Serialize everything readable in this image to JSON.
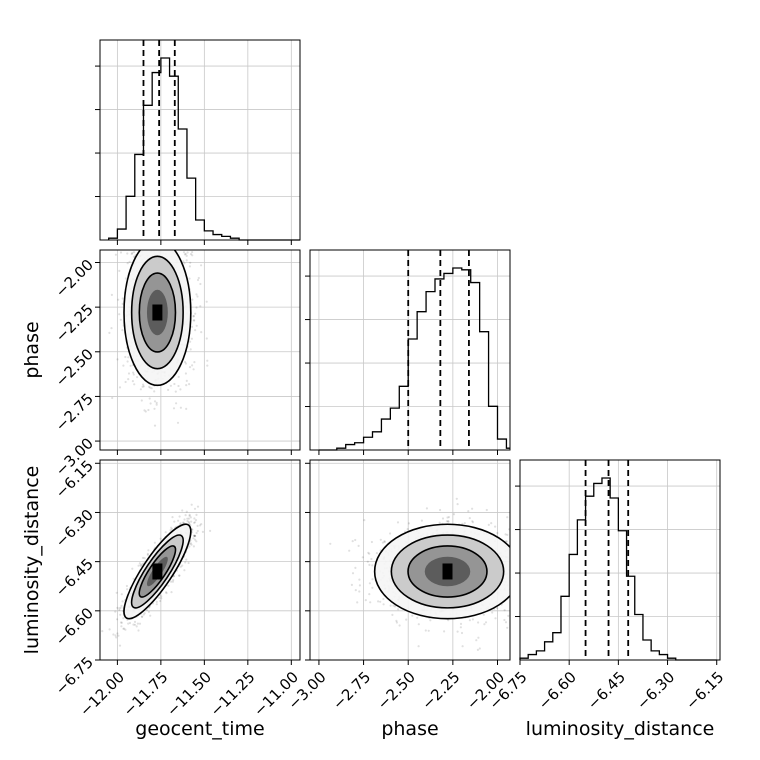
{
  "chart_data": {
    "type": "corner",
    "parameters": [
      "geocent_time",
      "phase",
      "luminosity_distance"
    ],
    "ranges": {
      "geocent_time": [
        -12.1,
        -10.95
      ],
      "phase": [
        -3.05,
        -1.93
      ],
      "luminosity_distance": [
        -6.75,
        -6.14
      ]
    },
    "ticks": {
      "geocent_time": {
        "values": [
          -12.0,
          -11.75,
          -11.5,
          -11.25,
          -11.0
        ],
        "labels": [
          "−12.00",
          "−11.75",
          "−11.50",
          "−11.25",
          "−11.00"
        ]
      },
      "phase": {
        "values": [
          -3.0,
          -2.75,
          -2.5,
          -2.25,
          -2.0
        ],
        "labels": [
          "−3.00",
          "−2.75",
          "−2.50",
          "−2.25",
          "−2.00"
        ]
      },
      "luminosity_distance": {
        "values": [
          -6.75,
          -6.6,
          -6.45,
          -6.3,
          -6.15
        ],
        "labels": [
          "−6.75",
          "−6.60",
          "−6.45",
          "−6.30",
          "−6.15"
        ]
      }
    },
    "grid": true,
    "histograms": {
      "geocent_time": {
        "x_start": -12.05,
        "bin_width": 0.05,
        "counts": [
          1,
          6,
          24,
          47,
          74,
          92,
          100,
          90,
          61,
          34,
          11,
          5,
          3,
          2,
          1,
          0,
          0,
          0,
          0,
          0,
          0,
          0
        ],
        "quantiles": [
          -11.85,
          -11.76,
          -11.67
        ]
      },
      "phase": {
        "x_start": -3.0,
        "bin_width": 0.05,
        "counts": [
          0,
          0,
          1,
          3,
          4,
          7,
          10,
          17,
          23,
          35,
          61,
          76,
          87,
          94,
          97,
          100,
          99,
          92,
          65,
          24,
          6,
          1
        ],
        "quantiles": [
          -2.5,
          -2.32,
          -2.16
        ]
      },
      "luminosity_distance": {
        "x_start": -6.75,
        "bin_width": 0.025,
        "counts": [
          1,
          3,
          5,
          10,
          15,
          35,
          58,
          77,
          90,
          97,
          100,
          89,
          71,
          46,
          25,
          11,
          5,
          3,
          1,
          0,
          0,
          0,
          0,
          0
        ],
        "quantiles": [
          -6.55,
          -6.48,
          -6.42
        ]
      }
    },
    "joint": [
      {
        "x": "geocent_time",
        "y": "phase",
        "mean": [
          -11.77,
          -2.28
        ],
        "sd": [
          0.08,
          0.17
        ],
        "rho": 0.0
      },
      {
        "x": "geocent_time",
        "y": "luminosity_distance",
        "mean": [
          -11.77,
          -6.48
        ],
        "sd": [
          0.08,
          0.06
        ],
        "rho": 0.85
      },
      {
        "x": "phase",
        "y": "luminosity_distance",
        "mean": [
          -2.28,
          -6.48
        ],
        "sd": [
          0.17,
          0.06
        ],
        "rho": 0.0
      }
    ]
  }
}
